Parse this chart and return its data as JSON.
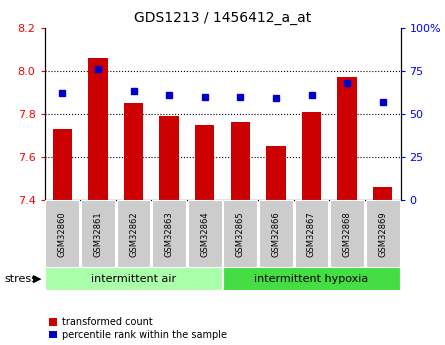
{
  "title": "GDS1213 / 1456412_a_at",
  "samples": [
    "GSM32860",
    "GSM32861",
    "GSM32862",
    "GSM32863",
    "GSM32864",
    "GSM32865",
    "GSM32866",
    "GSM32867",
    "GSM32868",
    "GSM32869"
  ],
  "transformed_count": [
    7.73,
    8.06,
    7.85,
    7.79,
    7.75,
    7.76,
    7.65,
    7.81,
    7.97,
    7.46
  ],
  "percentile_rank": [
    62,
    76,
    63,
    61,
    60,
    60,
    59,
    61,
    68,
    57
  ],
  "ylim_left": [
    7.4,
    8.2
  ],
  "ylim_right": [
    0,
    100
  ],
  "yticks_left": [
    7.4,
    7.6,
    7.8,
    8.0,
    8.2
  ],
  "yticks_right": [
    0,
    25,
    50,
    75,
    100
  ],
  "ytick_labels_right": [
    "0",
    "25",
    "50",
    "75",
    "100%"
  ],
  "bar_color": "#cc0000",
  "dot_color": "#0000cc",
  "groups": [
    {
      "label": "intermittent air",
      "color": "#aaffaa",
      "start": 0,
      "end": 5
    },
    {
      "label": "intermittent hypoxia",
      "color": "#44dd44",
      "start": 5,
      "end": 10
    }
  ],
  "stress_label": "stress",
  "legend_red": "transformed count",
  "legend_blue": "percentile rank within the sample",
  "tick_bg_color": "#cccccc",
  "bar_baseline": 7.4,
  "figsize": [
    4.45,
    3.45
  ],
  "dpi": 100
}
